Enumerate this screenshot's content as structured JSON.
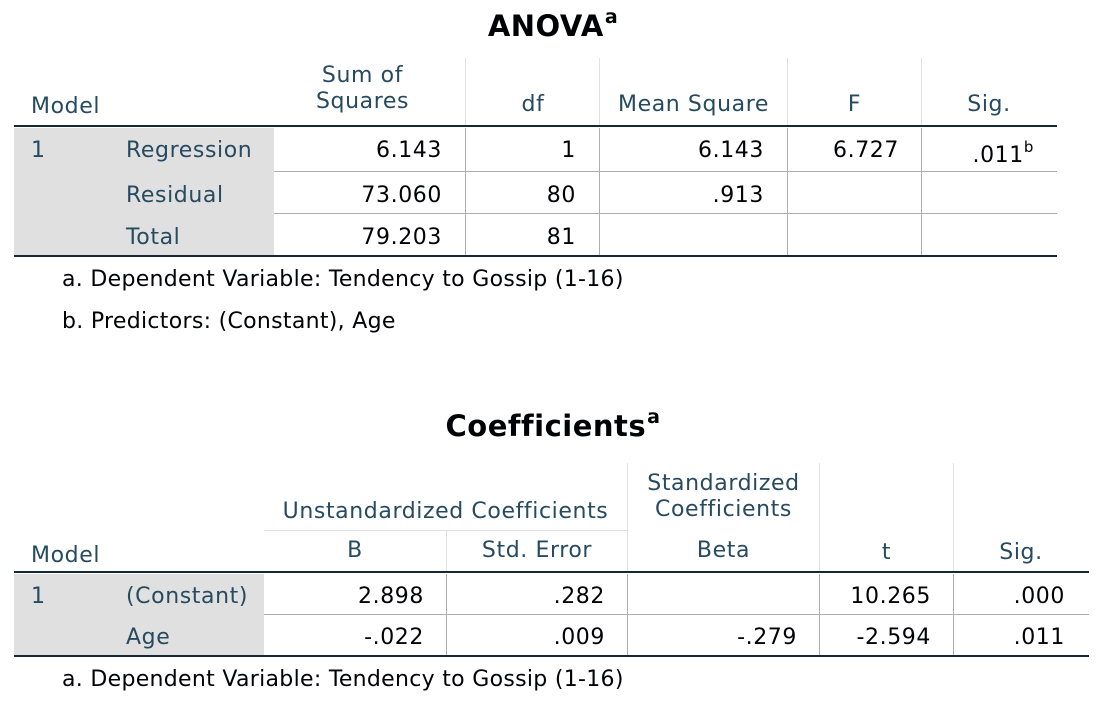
{
  "anova": {
    "title": "ANOVA",
    "title_sup": "a",
    "headers": {
      "model": "Model",
      "ss_line1": "Sum of",
      "ss_line2": "Squares",
      "df": "df",
      "ms": "Mean Square",
      "f": "F",
      "sig": "Sig."
    },
    "model_number": "1",
    "rows": [
      {
        "label": "Regression",
        "ss": "6.143",
        "df": "1",
        "ms": "6.143",
        "f": "6.727",
        "sig": ".011",
        "sig_sup": "b"
      },
      {
        "label": "Residual",
        "ss": "73.060",
        "df": "80",
        "ms": ".913",
        "f": "",
        "sig": ""
      },
      {
        "label": "Total",
        "ss": "79.203",
        "df": "81",
        "ms": "",
        "f": "",
        "sig": ""
      }
    ],
    "footnotes": [
      "a. Dependent Variable: Tendency to Gossip (1-16)",
      "b. Predictors: (Constant), Age"
    ]
  },
  "coefficients": {
    "title": "Coefficients",
    "title_sup": "a",
    "headers": {
      "model": "Model",
      "unstd": "Unstandardized Coefficients",
      "std_line1": "Standardized",
      "std_line2": "Coefficients",
      "b": "B",
      "se": "Std. Error",
      "beta": "Beta",
      "t": "t",
      "sig": "Sig."
    },
    "model_number": "1",
    "rows": [
      {
        "label": "(Constant)",
        "b": "2.898",
        "se": ".282",
        "beta": "",
        "t": "10.265",
        "sig": ".000"
      },
      {
        "label": "Age",
        "b": "-.022",
        "se": ".009",
        "beta": "-.279",
        "t": "-2.594",
        "sig": ".011"
      }
    ],
    "footnotes": [
      "a. Dependent Variable: Tendency to Gossip (1-16)"
    ]
  },
  "colors": {
    "header_text": "#264a60",
    "value_text": "#010205",
    "label_shade": "#e0e0e0",
    "rule_dark": "#152935"
  }
}
